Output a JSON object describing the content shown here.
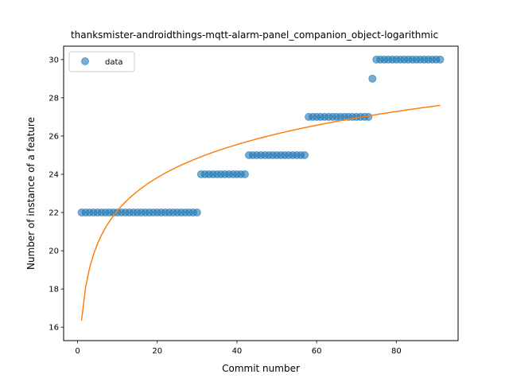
{
  "chart_data": {
    "type": "scatter",
    "title": "thanksmister-androidthings-mqtt-alarm-panel_companion_object-logarithmic",
    "xlabel": "Commit number",
    "ylabel": "Number of instance of a feature",
    "xlim": [
      -3.5,
      95.5
    ],
    "ylim": [
      15.3,
      30.7
    ],
    "xticks": [
      0,
      20,
      40,
      60,
      80
    ],
    "yticks": [
      16,
      18,
      20,
      22,
      24,
      26,
      28,
      30
    ],
    "grid": false,
    "legend_position": "upper-left",
    "series": [
      {
        "name": "data",
        "kind": "scatter",
        "color": "#1f77b4",
        "alpha": 0.6,
        "points": [
          [
            1,
            22
          ],
          [
            2,
            22
          ],
          [
            3,
            22
          ],
          [
            4,
            22
          ],
          [
            5,
            22
          ],
          [
            6,
            22
          ],
          [
            7,
            22
          ],
          [
            8,
            22
          ],
          [
            9,
            22
          ],
          [
            10,
            22
          ],
          [
            11,
            22
          ],
          [
            12,
            22
          ],
          [
            13,
            22
          ],
          [
            14,
            22
          ],
          [
            15,
            22
          ],
          [
            16,
            22
          ],
          [
            17,
            22
          ],
          [
            18,
            22
          ],
          [
            19,
            22
          ],
          [
            20,
            22
          ],
          [
            21,
            22
          ],
          [
            22,
            22
          ],
          [
            23,
            22
          ],
          [
            24,
            22
          ],
          [
            25,
            22
          ],
          [
            26,
            22
          ],
          [
            27,
            22
          ],
          [
            28,
            22
          ],
          [
            29,
            22
          ],
          [
            30,
            22
          ],
          [
            31,
            24
          ],
          [
            32,
            24
          ],
          [
            33,
            24
          ],
          [
            34,
            24
          ],
          [
            35,
            24
          ],
          [
            36,
            24
          ],
          [
            37,
            24
          ],
          [
            38,
            24
          ],
          [
            39,
            24
          ],
          [
            40,
            24
          ],
          [
            41,
            24
          ],
          [
            42,
            24
          ],
          [
            43,
            25
          ],
          [
            44,
            25
          ],
          [
            45,
            25
          ],
          [
            46,
            25
          ],
          [
            47,
            25
          ],
          [
            48,
            25
          ],
          [
            49,
            25
          ],
          [
            50,
            25
          ],
          [
            51,
            25
          ],
          [
            52,
            25
          ],
          [
            53,
            25
          ],
          [
            54,
            25
          ],
          [
            55,
            25
          ],
          [
            56,
            25
          ],
          [
            57,
            25
          ],
          [
            58,
            27
          ],
          [
            59,
            27
          ],
          [
            60,
            27
          ],
          [
            61,
            27
          ],
          [
            62,
            27
          ],
          [
            63,
            27
          ],
          [
            64,
            27
          ],
          [
            65,
            27
          ],
          [
            66,
            27
          ],
          [
            67,
            27
          ],
          [
            68,
            27
          ],
          [
            69,
            27
          ],
          [
            70,
            27
          ],
          [
            71,
            27
          ],
          [
            72,
            27
          ],
          [
            73,
            27
          ],
          [
            74,
            29
          ],
          [
            75,
            30
          ],
          [
            76,
            30
          ],
          [
            77,
            30
          ],
          [
            78,
            30
          ],
          [
            79,
            30
          ],
          [
            80,
            30
          ],
          [
            81,
            30
          ],
          [
            82,
            30
          ],
          [
            83,
            30
          ],
          [
            84,
            30
          ],
          [
            85,
            30
          ],
          [
            86,
            30
          ],
          [
            87,
            30
          ],
          [
            88,
            30
          ],
          [
            89,
            30
          ],
          [
            90,
            30
          ],
          [
            91,
            30
          ]
        ]
      },
      {
        "name": "",
        "kind": "line",
        "color": "#ff7f0e",
        "model": "logarithmic",
        "coefficients": {
          "a": 16.35,
          "b": 2.495
        },
        "x_range": [
          1,
          91
        ]
      }
    ]
  }
}
